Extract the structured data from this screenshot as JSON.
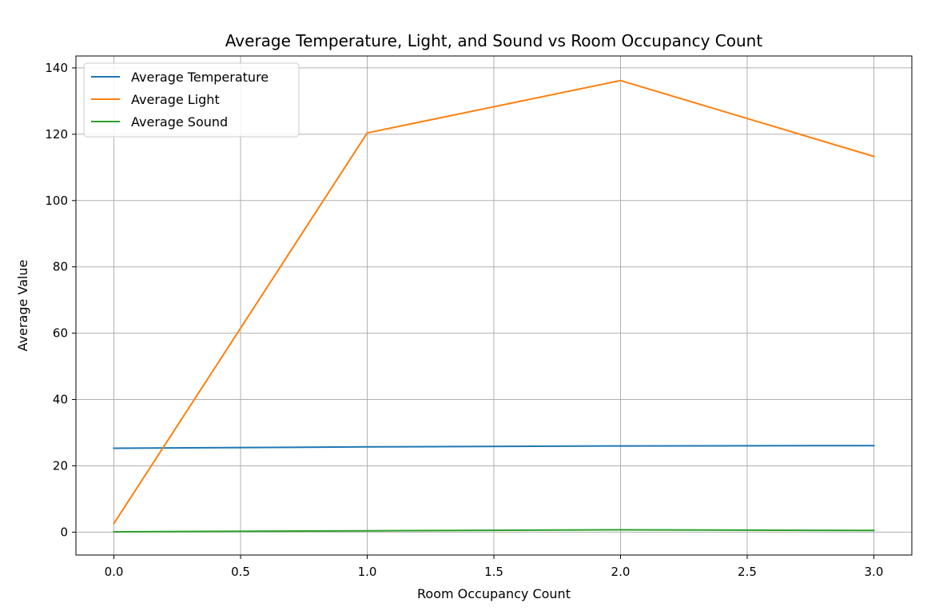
{
  "chart_data": {
    "type": "line",
    "title": "Average Temperature, Light, and Sound vs Room Occupancy Count",
    "xlabel": "Room Occupancy Count",
    "ylabel": "Average Value",
    "x": [
      0,
      1,
      2,
      3
    ],
    "xlim": [
      -0.15,
      3.15
    ],
    "ylim": [
      -6.9,
      143.6
    ],
    "xticks": [
      0.0,
      0.5,
      1.0,
      1.5,
      2.0,
      2.5,
      3.0
    ],
    "xtick_labels": [
      "0.0",
      "0.5",
      "1.0",
      "1.5",
      "2.0",
      "2.5",
      "3.0"
    ],
    "yticks": [
      0,
      20,
      40,
      60,
      80,
      100,
      120,
      140
    ],
    "ytick_labels": [
      "0",
      "20",
      "40",
      "60",
      "80",
      "100",
      "120",
      "140"
    ],
    "grid": true,
    "legend_position": "top-left",
    "series": [
      {
        "name": "Average Temperature",
        "color": "#1f77b4",
        "values": [
          25.3,
          25.7,
          26.0,
          26.1
        ]
      },
      {
        "name": "Average Light",
        "color": "#ff7f0e",
        "values": [
          2.6,
          120.4,
          136.2,
          113.3
        ]
      },
      {
        "name": "Average Sound",
        "color": "#2ca02c",
        "values": [
          0.1,
          0.4,
          0.7,
          0.5
        ]
      }
    ]
  }
}
